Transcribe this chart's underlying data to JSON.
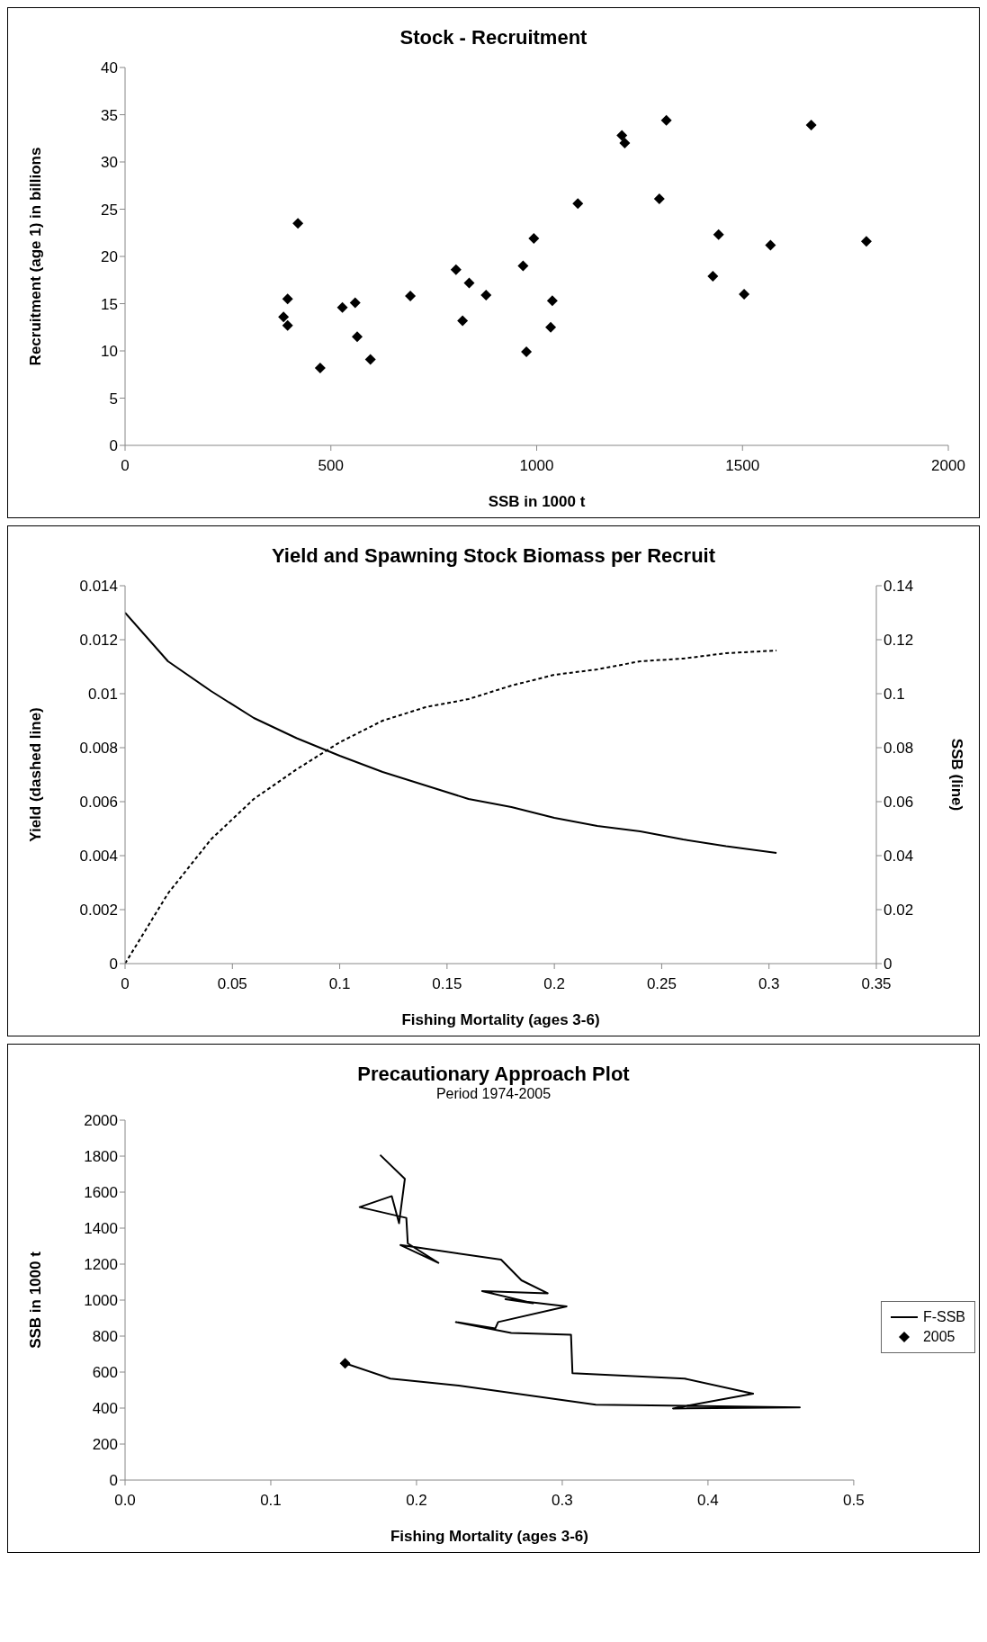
{
  "chart_data": [
    {
      "type": "scatter",
      "title": "Stock - Recruitment",
      "xlabel": "SSB in 1000 t",
      "ylabel": "Recruitment (age 1) in billions",
      "marker": "diamond",
      "x": [
        385,
        395,
        395,
        420,
        474,
        528,
        559,
        564,
        596,
        693,
        804,
        820,
        836,
        877,
        967,
        975,
        993,
        1034,
        1038,
        1100,
        1207,
        1214,
        1298,
        1315,
        1428,
        1442,
        1504,
        1568,
        1667,
        1801
      ],
      "series": [
        {
          "color": "#000000",
          "values": [
            13.6,
            12.7,
            15.5,
            23.5,
            8.2,
            14.6,
            15.1,
            11.5,
            9.1,
            15.8,
            18.6,
            13.2,
            17.2,
            15.9,
            19.0,
            9.9,
            21.9,
            12.5,
            15.3,
            25.6,
            32.8,
            32.0,
            26.1,
            34.4,
            17.9,
            22.3,
            16.0,
            21.2,
            33.9,
            21.6
          ]
        }
      ],
      "xlim": [
        0,
        2000
      ],
      "xticks": [
        0,
        500,
        1000,
        1500,
        2000
      ],
      "ylim": [
        0,
        40
      ],
      "yticks": [
        0,
        5,
        10,
        15,
        20,
        25,
        30,
        35,
        40
      ]
    },
    {
      "type": "line",
      "title": "Yield and Spawning Stock Biomass per Recruit",
      "xlabel": "Fishing Mortality (ages 3-6)",
      "ylabel": "Yield (dashed line)",
      "y2label": "SSB (line)",
      "marker": "none",
      "x": [
        0,
        0.02,
        0.04,
        0.06,
        0.08,
        0.1,
        0.12,
        0.14,
        0.16,
        0.18,
        0.2,
        0.22,
        0.24,
        0.26,
        0.28,
        0.3035
      ],
      "series": [
        {
          "color": "#000000",
          "line_style": "dashed",
          "values": [
            0,
            0.0026,
            0.0046,
            0.0061,
            0.0072,
            0.0082,
            0.009,
            0.0095,
            0.0098,
            0.0103,
            0.0107,
            0.0109,
            0.0112,
            0.0113,
            0.0115,
            0.0116
          ]
        },
        {
          "color": "#000000",
          "line_style": "solid",
          "axis": "y2",
          "values": [
            0.13,
            0.112,
            0.101,
            0.091,
            0.0835,
            0.077,
            0.071,
            0.066,
            0.061,
            0.058,
            0.054,
            0.051,
            0.049,
            0.046,
            0.0435,
            0.041
          ]
        }
      ],
      "xlim": [
        0,
        0.35
      ],
      "xticks": [
        0,
        0.05,
        0.1,
        0.15,
        0.2,
        0.25,
        0.3,
        0.35
      ],
      "ylim": [
        0,
        0.014
      ],
      "yticks": [
        0,
        0.002,
        0.004,
        0.006,
        0.008,
        0.01,
        0.012,
        0.014
      ],
      "y2lim": [
        0,
        0.14
      ],
      "y2ticks": [
        0,
        0.02,
        0.04,
        0.06,
        0.08,
        0.1,
        0.12,
        0.14
      ]
    },
    {
      "type": "line",
      "title": "Precautionary Approach Plot",
      "subtitle": "Period 1974-2005",
      "xlabel": "Fishing Mortality (ages 3-6)",
      "ylabel": "SSB in 1000 t",
      "legend": "right",
      "series": [
        {
          "name": "F-SSB",
          "color": "#000000",
          "marker": "none",
          "line_style": "solid",
          "x": [
            0.175,
            0.192,
            0.188,
            0.183,
            0.161,
            0.193,
            0.194,
            0.215,
            0.189,
            0.258,
            0.272,
            0.29,
            0.245,
            0.28,
            0.261,
            0.303,
            0.256,
            0.254,
            0.227,
            0.265,
            0.306,
            0.307,
            0.384,
            0.431,
            0.376,
            0.463,
            0.323,
            0.229,
            0.182,
            0.151
          ],
          "values": [
            1807,
            1674,
            1427,
            1578,
            1517,
            1457,
            1315,
            1207,
            1306,
            1225,
            1110,
            1038,
            1050,
            983,
            1005,
            965,
            878,
            842,
            878,
            817,
            808,
            594,
            564,
            480,
            398,
            404,
            419,
            525,
            564,
            649
          ]
        },
        {
          "name": "2005",
          "type": "scatter",
          "color": "#000000",
          "marker": "diamond",
          "x": [
            0.151
          ],
          "values": [
            649
          ]
        }
      ],
      "xlim": [
        0,
        0.5
      ],
      "xticks": [
        {
          "value": 0,
          "label": "0.0"
        },
        {
          "value": 0.1,
          "label": "0.1"
        },
        {
          "value": 0.2,
          "label": "0.2"
        },
        {
          "value": 0.3,
          "label": "0.3"
        },
        {
          "value": 0.4,
          "label": "0.4"
        },
        {
          "value": 0.5,
          "label": "0.5"
        }
      ],
      "ylim": [
        0,
        2000
      ],
      "yticks": [
        0,
        200,
        400,
        600,
        800,
        1000,
        1200,
        1400,
        1600,
        1800,
        2000
      ]
    }
  ]
}
